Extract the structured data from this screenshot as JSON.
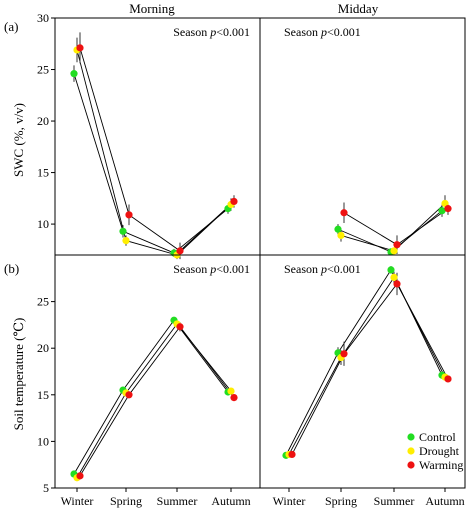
{
  "panel_labels": [
    "(a)",
    "(b)"
  ],
  "column_titles": [
    "Morning",
    "Midday"
  ],
  "annotation_prefix": "Season ",
  "annotation_p": "p",
  "annotation_suffix": "<0.001",
  "colors": {
    "Control": "#22dd22",
    "Drought": "#ffee00",
    "Warming": "#ee1111",
    "line": "#000000",
    "errorbar": "#333333"
  },
  "chart_data": [
    {
      "type": "scatter",
      "panel": "(a)",
      "column": "Morning",
      "ylabel": "SWC (%, v/v)",
      "ylim": [
        7,
        30
      ],
      "yticks": [
        10,
        15,
        20,
        25,
        30
      ],
      "categories": [
        "Winter",
        "Spring",
        "Summer",
        "Autumn"
      ],
      "annotation": "Season p<0.001",
      "series": [
        {
          "name": "Control",
          "values": [
            24.6,
            9.3,
            7.2,
            11.5
          ],
          "errors": [
            0.8,
            0.6,
            0.4,
            0.5
          ]
        },
        {
          "name": "Drought",
          "values": [
            26.9,
            8.4,
            7.0,
            11.9
          ],
          "errors": [
            1.2,
            0.5,
            0.4,
            0.6
          ]
        },
        {
          "name": "Warming",
          "values": [
            27.1,
            10.9,
            7.4,
            12.2
          ],
          "errors": [
            1.5,
            1.0,
            0.8,
            0.6
          ]
        }
      ]
    },
    {
      "type": "scatter",
      "panel": "(a)",
      "column": "Midday",
      "ylim": [
        7,
        30
      ],
      "categories": [
        "Winter",
        "Spring",
        "Summer",
        "Autumn"
      ],
      "annotation": "Season p<0.001",
      "series": [
        {
          "name": "Control",
          "values": [
            null,
            9.5,
            7.3,
            11.3
          ],
          "errors": [
            0,
            0.5,
            0.3,
            0.6
          ]
        },
        {
          "name": "Drought",
          "values": [
            null,
            8.9,
            7.4,
            12.0
          ],
          "errors": [
            0,
            0.6,
            0.3,
            0.8
          ]
        },
        {
          "name": "Warming",
          "values": [
            null,
            11.1,
            8.0,
            11.5
          ],
          "errors": [
            0,
            1.0,
            0.9,
            0.6
          ]
        }
      ]
    },
    {
      "type": "scatter",
      "panel": "(b)",
      "column": "Morning",
      "ylabel": "Soil temperature (℃)",
      "ylim": [
        5,
        30
      ],
      "yticks": [
        5,
        10,
        15,
        20,
        25
      ],
      "categories": [
        "Winter",
        "Spring",
        "Summer",
        "Autumn"
      ],
      "xticks": [
        "Winter",
        "Spring",
        "Summer",
        "Autumn"
      ],
      "annotation": "Season p<0.001",
      "series": [
        {
          "name": "Control",
          "values": [
            6.5,
            15.5,
            23.0,
            15.3
          ],
          "errors": [
            0.2,
            0.3,
            0.3,
            0.3
          ]
        },
        {
          "name": "Drought",
          "values": [
            6.1,
            15.2,
            22.6,
            15.4
          ],
          "errors": [
            0.2,
            0.3,
            0.4,
            0.3
          ]
        },
        {
          "name": "Warming",
          "values": [
            6.3,
            15.0,
            22.3,
            14.7
          ],
          "errors": [
            0.2,
            0.3,
            0.5,
            0.3
          ]
        }
      ]
    },
    {
      "type": "scatter",
      "panel": "(b)",
      "column": "Midday",
      "ylim": [
        5,
        30
      ],
      "categories": [
        "Winter",
        "Spring",
        "Summer",
        "Autumn"
      ],
      "xticks": [
        "Winter",
        "Spring",
        "Summer",
        "Autumn"
      ],
      "annotation": "Season p<0.001",
      "legend": "bottom-right",
      "series": [
        {
          "name": "Control",
          "values": [
            8.5,
            19.5,
            28.4,
            17.1
          ],
          "errors": [
            0.2,
            0.6,
            0.4,
            0.3
          ]
        },
        {
          "name": "Drought",
          "values": [
            8.6,
            19.0,
            27.6,
            16.9
          ],
          "errors": [
            0.2,
            0.8,
            0.6,
            0.3
          ]
        },
        {
          "name": "Warming",
          "values": [
            8.6,
            19.4,
            26.9,
            16.7
          ],
          "errors": [
            0.2,
            1.3,
            1.2,
            0.3
          ]
        }
      ]
    }
  ]
}
